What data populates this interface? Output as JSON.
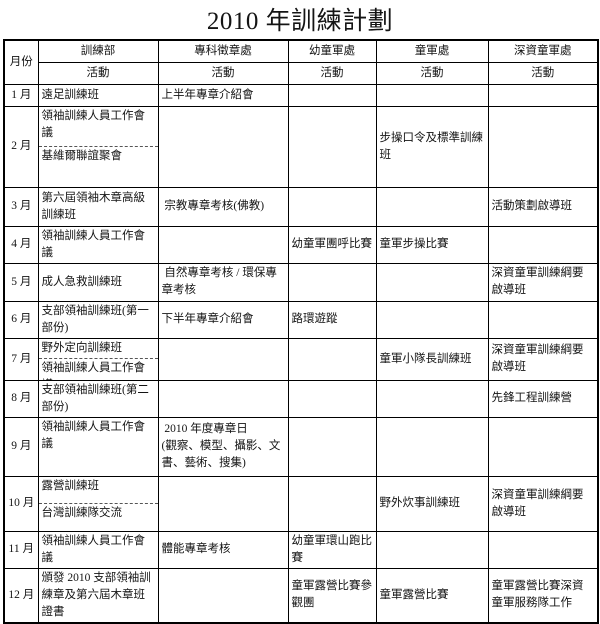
{
  "title": "2010 年訓練計劃",
  "table": {
    "month_header": "月份",
    "activity_label": "活動",
    "departments": [
      "訓練部",
      "專科徵章處",
      "幼童軍處",
      "童軍處",
      "深資童軍處"
    ],
    "rows": [
      {
        "month": "1 月",
        "cells": [
          "遠足訓練班",
          "上半年專章介紹會",
          "",
          "",
          ""
        ]
      },
      {
        "month": "2 月",
        "cells": [
          [
            "領袖訓練人員工作會議",
            "基維爾聯誼聚會"
          ],
          "",
          "",
          "步操口令及標準訓練班",
          ""
        ]
      },
      {
        "month": "3 月",
        "cells": [
          "第六屆領袖木章高級訓練班",
          " 宗教專章考核(佛教)",
          "",
          "",
          "活動策劃啟導班"
        ]
      },
      {
        "month": "4 月",
        "cells": [
          "領袖訓練人員工作會議",
          "",
          "幼童軍團呼比賽",
          "童軍步操比賽",
          ""
        ]
      },
      {
        "month": "5 月",
        "cells": [
          "成人急救訓練班",
          " 自然專章考核 / 環保專章考核",
          "",
          "",
          "深資童軍訓練綱要啟導班"
        ]
      },
      {
        "month": "6 月",
        "cells": [
          "支部領袖訓練班(第一部份)",
          "下半年專章介紹會",
          "路環遊蹤",
          "",
          ""
        ]
      },
      {
        "month": "7 月",
        "cells": [
          [
            "野外定向訓練班",
            "領袖訓練人員工作會議"
          ],
          "",
          "",
          "童軍小隊長訓練班",
          "深資童軍訓練綱要啟導班"
        ]
      },
      {
        "month": "8 月",
        "cells": [
          "支部領袖訓練班(第二部份)",
          "",
          "",
          "",
          "先鋒工程訓練營"
        ]
      },
      {
        "month": "9 月",
        "cells": [
          {
            "text": "領袖訓練人員工作會議",
            "valign": "top"
          },
          " 2010 年度專章日\n(觀察、模型、攝影、文書、藝術、搜集)",
          "",
          "",
          ""
        ]
      },
      {
        "month": "10 月",
        "cells": [
          [
            "露營訓練班",
            "台灣訓練隊交流"
          ],
          "",
          "",
          "野外炊事訓練班",
          "深資童軍訓練綱要啟導班"
        ]
      },
      {
        "month": "11 月",
        "cells": [
          "領袖訓練人員工作會議",
          "體能專章考核",
          "幼童軍環山跑比賽",
          "",
          ""
        ]
      },
      {
        "month": "12 月",
        "cells": [
          "頒發 2010 支部領袖訓練章及第六屆木章班證書",
          "",
          "童軍露營比賽參觀團",
          "童軍露營比賽",
          "童軍露營比賽深資童軍服務隊工作"
        ]
      }
    ]
  }
}
